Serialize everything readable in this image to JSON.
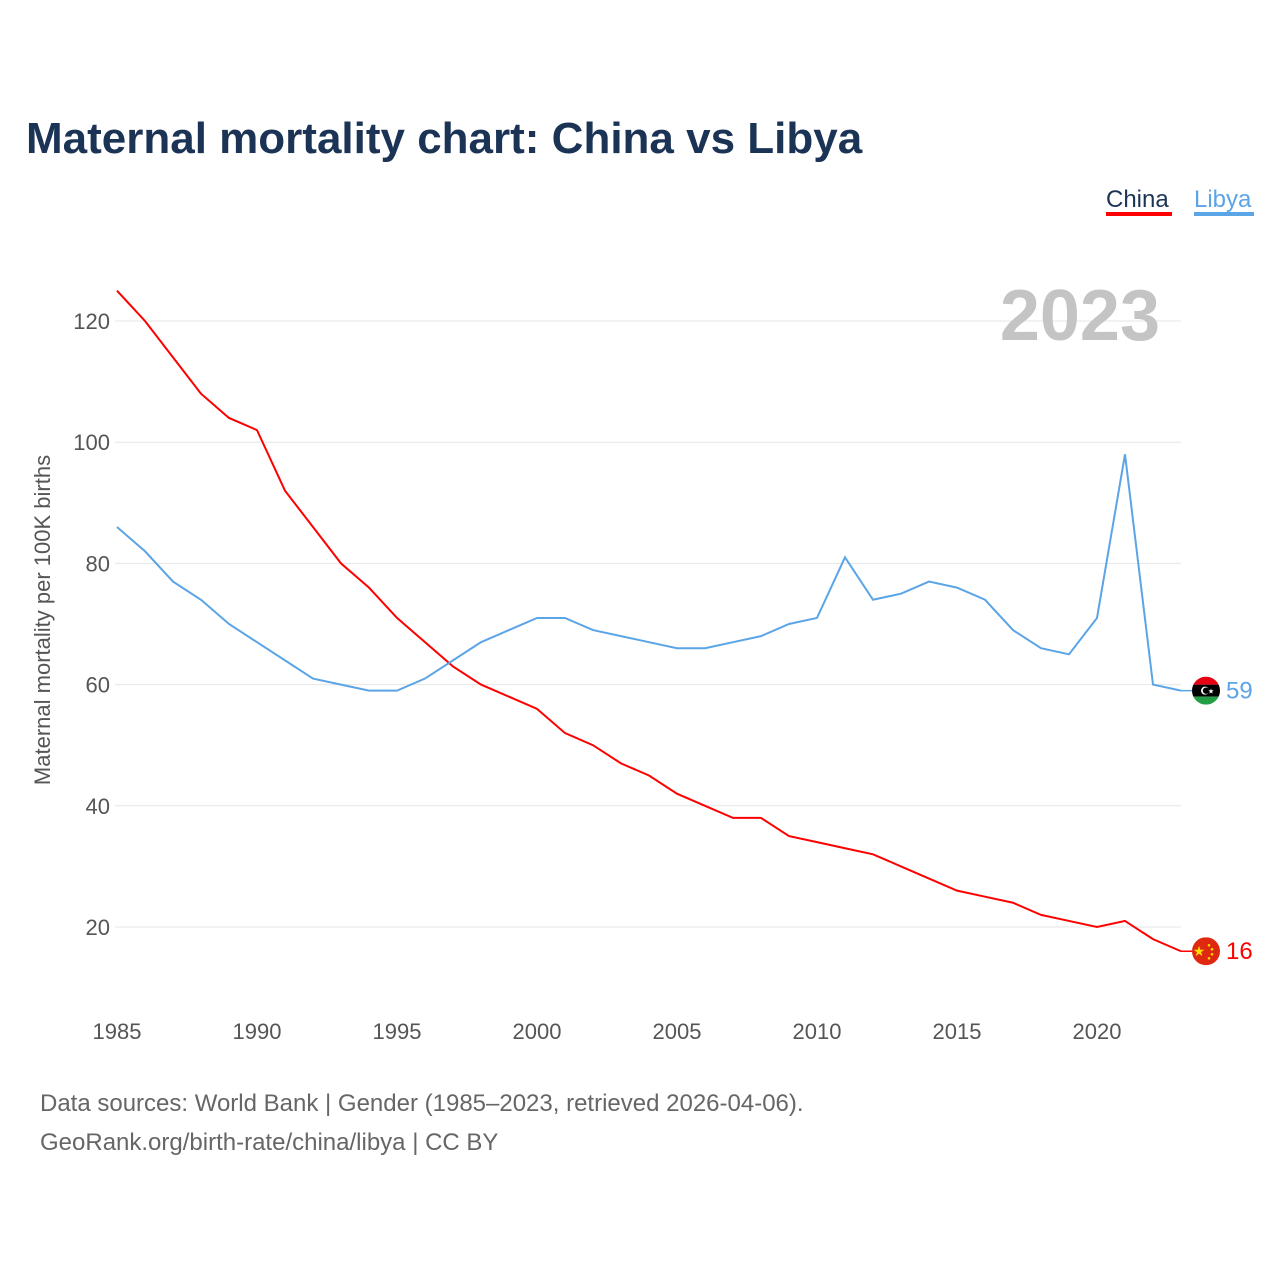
{
  "chart_data": {
    "type": "line",
    "title": "Maternal mortality chart: China vs Libya",
    "ylabel": "Maternal mortality per 100K births",
    "xlabel": "",
    "xlim": [
      1985,
      2023
    ],
    "ylim": [
      10,
      130
    ],
    "x_ticks": [
      "1985",
      "1990",
      "1995",
      "2000",
      "2005",
      "2010",
      "2015",
      "2020"
    ],
    "y_ticks": [
      "20",
      "40",
      "60",
      "80",
      "100",
      "120"
    ],
    "grid": true,
    "legend_position": "top-right",
    "year_label": "2023",
    "x": [
      1985,
      1986,
      1987,
      1988,
      1989,
      1990,
      1991,
      1992,
      1993,
      1994,
      1995,
      1996,
      1997,
      1998,
      1999,
      2000,
      2001,
      2002,
      2003,
      2004,
      2005,
      2006,
      2007,
      2008,
      2009,
      2010,
      2011,
      2012,
      2013,
      2014,
      2015,
      2016,
      2017,
      2018,
      2019,
      2020,
      2021,
      2022,
      2023
    ],
    "series": [
      {
        "name": "China",
        "color": "#ff0000",
        "end_label": "16",
        "values": [
          125,
          120,
          114,
          108,
          104,
          102,
          92,
          86,
          80,
          76,
          71,
          67,
          63,
          60,
          58,
          56,
          52,
          50,
          47,
          45,
          42,
          40,
          38,
          38,
          35,
          34,
          33,
          32,
          30,
          28,
          26,
          25,
          24,
          22,
          21,
          20,
          21,
          18,
          16
        ]
      },
      {
        "name": "Libya",
        "color": "#5ba4e6",
        "end_label": "59",
        "values": [
          86,
          82,
          77,
          74,
          70,
          67,
          64,
          61,
          60,
          59,
          59,
          61,
          64,
          67,
          69,
          71,
          71,
          69,
          68,
          67,
          66,
          66,
          67,
          68,
          70,
          71,
          81,
          74,
          75,
          77,
          76,
          74,
          69,
          66,
          65,
          71,
          98,
          60,
          59
        ]
      }
    ]
  },
  "footer": {
    "line1": "Data sources: World Bank | Gender (1985–2023, retrieved 2026-04-06).",
    "line2": "GeoRank.org/birth-rate/china/libya | CC BY"
  }
}
